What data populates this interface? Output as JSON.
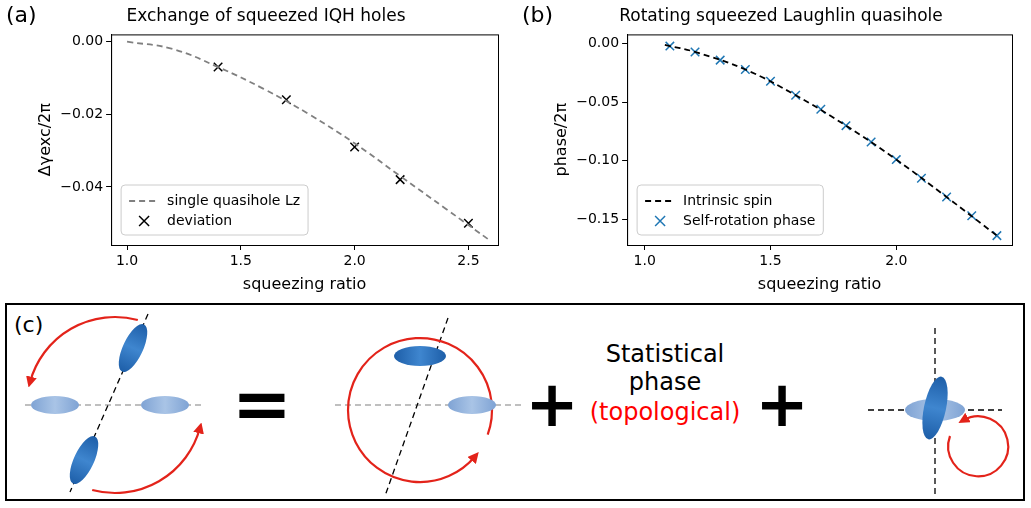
{
  "chart_data": [
    {
      "type": "line",
      "label": "(a)",
      "title": "Exchange of squeezed IQH holes",
      "x_label": "squeezing ratio",
      "y_label": "Δγexc/2π",
      "xlim": [
        0.93,
        2.63
      ],
      "xticks": [
        {
          "value": 1,
          "label": "1.0"
        },
        {
          "value": 1.5,
          "label": "1.5"
        },
        {
          "value": 2,
          "label": "2.0"
        },
        {
          "value": 2.5,
          "label": "2.5"
        }
      ],
      "ylim": [
        -0.056,
        0.002
      ],
      "yticks": [
        {
          "value": 0,
          "label": "0.00"
        },
        {
          "value": -0.02,
          "label": "−0.02"
        },
        {
          "value": -0.04,
          "label": "−0.04"
        }
      ],
      "grid": false,
      "legend": "lower left",
      "series": [
        {
          "name": "single quasihole Lz",
          "type": "line",
          "line_style": "dashed",
          "color": "#808080",
          "x": [
            1.0,
            1.2,
            1.4,
            1.6,
            1.8,
            2.0,
            2.2,
            2.4,
            2.6
          ],
          "values": [
            0.0,
            -0.002,
            -0.007,
            -0.013,
            -0.02,
            -0.028,
            -0.037,
            -0.046,
            -0.055
          ]
        },
        {
          "name": "deviation",
          "type": "scatter",
          "marker": "x",
          "color": "#000000",
          "x": [
            1.4,
            1.7,
            2.0,
            2.2,
            2.5
          ],
          "values": [
            -0.007,
            -0.016,
            -0.029,
            -0.038,
            -0.05
          ]
        }
      ]
    },
    {
      "type": "line",
      "label": "(b)",
      "title": "Rotating squeezed Laughlin quasihole",
      "x_label": "squeezing ratio",
      "y_label": "phase/2π",
      "xlim": [
        0.93,
        2.46
      ],
      "xticks": [
        {
          "value": 1,
          "label": "1.0"
        },
        {
          "value": 1.5,
          "label": "1.5"
        },
        {
          "value": 2,
          "label": "2.0"
        }
      ],
      "ylim": [
        -0.172,
        0.008
      ],
      "yticks": [
        {
          "value": 0,
          "label": "0.00"
        },
        {
          "value": -0.05,
          "label": "−0.05"
        },
        {
          "value": -0.1,
          "label": "−0.10"
        },
        {
          "value": -0.15,
          "label": "−0.15"
        }
      ],
      "grid": false,
      "legend": "lower left",
      "series": [
        {
          "name": "Intrinsic spin",
          "type": "line",
          "line_style": "dashed",
          "color": "#000000",
          "x": [
            1.08,
            1.2,
            1.4,
            1.6,
            1.8,
            2.0,
            2.2,
            2.4
          ],
          "values": [
            -0.001,
            -0.007,
            -0.022,
            -0.044,
            -0.07,
            -0.099,
            -0.131,
            -0.164
          ]
        },
        {
          "name": "Self-rotation phase",
          "type": "scatter",
          "marker": "x",
          "color": "#1f77b4",
          "x": [
            1.1,
            1.2,
            1.3,
            1.4,
            1.5,
            1.6,
            1.7,
            1.8,
            1.9,
            2.0,
            2.1,
            2.2,
            2.3,
            2.4
          ],
          "values": [
            -0.002,
            -0.007,
            -0.014,
            -0.022,
            -0.032,
            -0.044,
            -0.056,
            -0.07,
            -0.084,
            -0.099,
            -0.115,
            -0.131,
            -0.147,
            -0.164
          ]
        }
      ]
    }
  ],
  "diagram": {
    "label": "(c)",
    "equals": "=",
    "plus": "+",
    "statistical_lines": [
      "Statistical",
      "phase"
    ],
    "note": "(topological)",
    "note_color": "#ff0000"
  }
}
